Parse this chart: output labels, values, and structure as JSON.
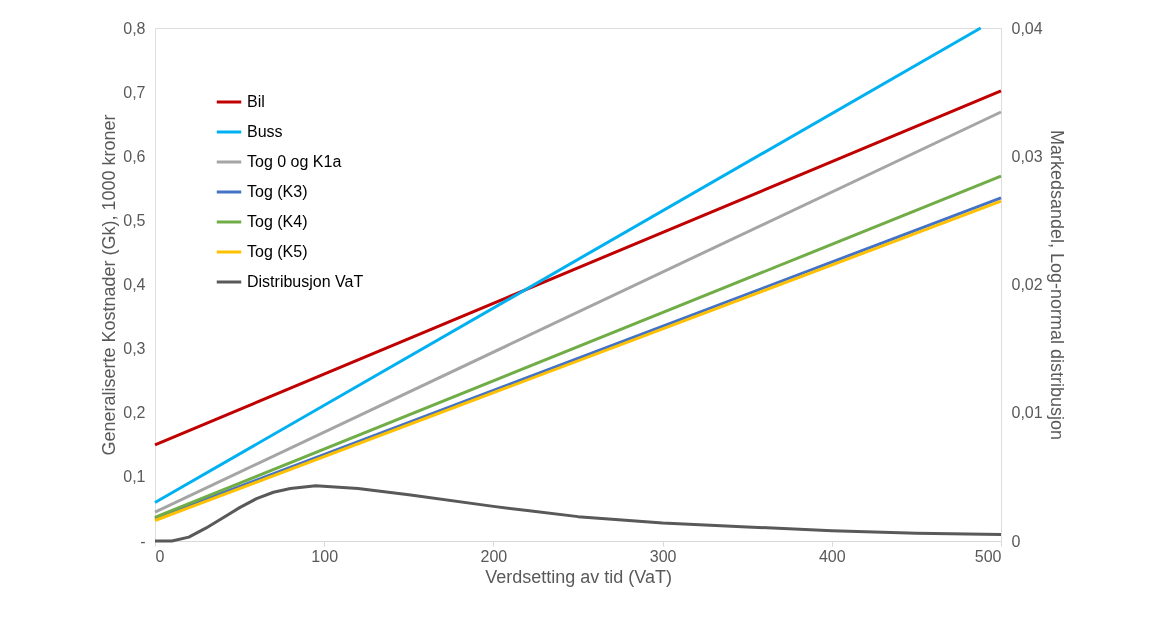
{
  "chart_data": {
    "type": "line",
    "xlabel": "Verdsetting av tid (VaT)",
    "ylabel": "Generaliserte Kostnader (Gk), 1000 kroner",
    "y2label": "Markedsandel, Log-normal distribusjon",
    "xlim": [
      0,
      500
    ],
    "xticks": [
      0,
      100,
      200,
      300,
      400,
      500
    ],
    "ylim": [
      0,
      0.8
    ],
    "yticks": [
      {
        "value": 0,
        "label": "-"
      },
      {
        "value": 0.1,
        "label": "0,1"
      },
      {
        "value": 0.2,
        "label": "0,2"
      },
      {
        "value": 0.3,
        "label": "0,3"
      },
      {
        "value": 0.4,
        "label": "0,4"
      },
      {
        "value": 0.5,
        "label": "0,5"
      },
      {
        "value": 0.6,
        "label": "0,6"
      },
      {
        "value": 0.7,
        "label": "0,7"
      },
      {
        "value": 0.8,
        "label": "0,8"
      }
    ],
    "y2lim": [
      0,
      0.04
    ],
    "y2ticks": [
      0,
      {
        "value": 0.01,
        "label": "0,01"
      },
      {
        "value": 0.02,
        "label": "0,02"
      },
      {
        "value": 0.03,
        "label": "0,03"
      },
      {
        "value": 0.04,
        "label": "0,04"
      }
    ],
    "grid": false,
    "legend": "top left",
    "marker": "none",
    "line_style": "solid",
    "series": [
      {
        "name": "Bil",
        "color": "#c00000",
        "x": [
          0,
          500
        ],
        "values": [
          0.15,
          0.702
        ]
      },
      {
        "name": "Buss",
        "color": "#00b0f0",
        "x": [
          0,
          488
        ],
        "values": [
          0.06,
          0.8
        ]
      },
      {
        "name": "Tog 0 og K1a",
        "color": "#a5a5a5",
        "x": [
          0,
          500
        ],
        "values": [
          0.045,
          0.669
        ]
      },
      {
        "name": "Tog (K3)",
        "color": "#4472c4",
        "x": [
          0,
          500
        ],
        "values": [
          0.035,
          0.535
        ]
      },
      {
        "name": "Tog (K4)",
        "color": "#70ad47",
        "x": [
          0,
          500
        ],
        "values": [
          0.037,
          0.569
        ]
      },
      {
        "name": "Tog (K5)",
        "color": "#ffc000",
        "x": [
          0,
          500
        ],
        "values": [
          0.032,
          0.53
        ]
      },
      {
        "name": "Distribusjon VaT",
        "color": "#595959",
        "axis": "y2",
        "x": [
          0,
          10,
          20,
          30,
          40,
          50,
          60,
          70,
          80,
          95,
          120,
          150,
          200,
          250,
          300,
          350,
          400,
          450,
          500
        ],
        "values": [
          0,
          0,
          0.0003,
          0.001,
          0.0018,
          0.0026,
          0.0033,
          0.0038,
          0.0041,
          0.0043,
          0.0041,
          0.0036,
          0.0027,
          0.0019,
          0.0014,
          0.0011,
          0.0008,
          0.0006,
          0.0005
        ]
      }
    ]
  }
}
